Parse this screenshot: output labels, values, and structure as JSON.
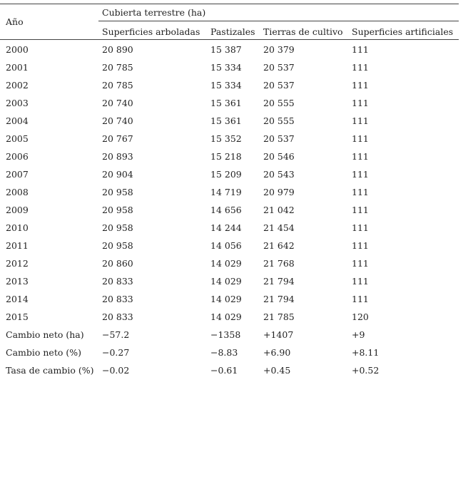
{
  "table": {
    "header": {
      "year": "Año",
      "group": "Cubierta terrestre (ha)",
      "columns": [
        "Superficies arboladas",
        "Pastizales",
        "Tierras de cultivo",
        "Superficies artificiales"
      ]
    },
    "rows": [
      [
        "2000",
        "20 890",
        "15 387",
        "20 379",
        "111"
      ],
      [
        "2001",
        "20 785",
        "15 334",
        "20 537",
        "111"
      ],
      [
        "2002",
        "20 785",
        "15 334",
        "20 537",
        "111"
      ],
      [
        "2003",
        "20 740",
        "15 361",
        "20 555",
        "111"
      ],
      [
        "2004",
        "20 740",
        "15 361",
        "20 555",
        "111"
      ],
      [
        "2005",
        "20 767",
        "15 352",
        "20 537",
        "111"
      ],
      [
        "2006",
        "20 893",
        "15 218",
        "20 546",
        "111"
      ],
      [
        "2007",
        "20 904",
        "15 209",
        "20 543",
        "111"
      ],
      [
        "2008",
        "20 958",
        "14 719",
        "20 979",
        "111"
      ],
      [
        "2009",
        "20 958",
        "14 656",
        "21 042",
        "111"
      ],
      [
        "2010",
        "20 958",
        "14 244",
        "21 454",
        "111"
      ],
      [
        "2011",
        "20 958",
        "14 056",
        "21 642",
        "111"
      ],
      [
        "2012",
        "20 860",
        "14 029",
        "21 768",
        "111"
      ],
      [
        "2013",
        "20 833",
        "14 029",
        "21 794",
        "111"
      ],
      [
        "2014",
        "20 833",
        "14 029",
        "21 794",
        "111"
      ],
      [
        "2015",
        "20 833",
        "14 029",
        "21 785",
        "120"
      ],
      [
        "Cambio neto (ha)",
        "−57.2",
        "−1358",
        "+1407",
        "+9"
      ],
      [
        "Cambio neto (%)",
        "−0.27",
        "−8.83",
        "+6.90",
        "+8.11"
      ],
      [
        "Tasa de cambio (%)",
        "−0.02",
        "−0.61",
        "+0.45",
        "+0.52"
      ]
    ]
  }
}
